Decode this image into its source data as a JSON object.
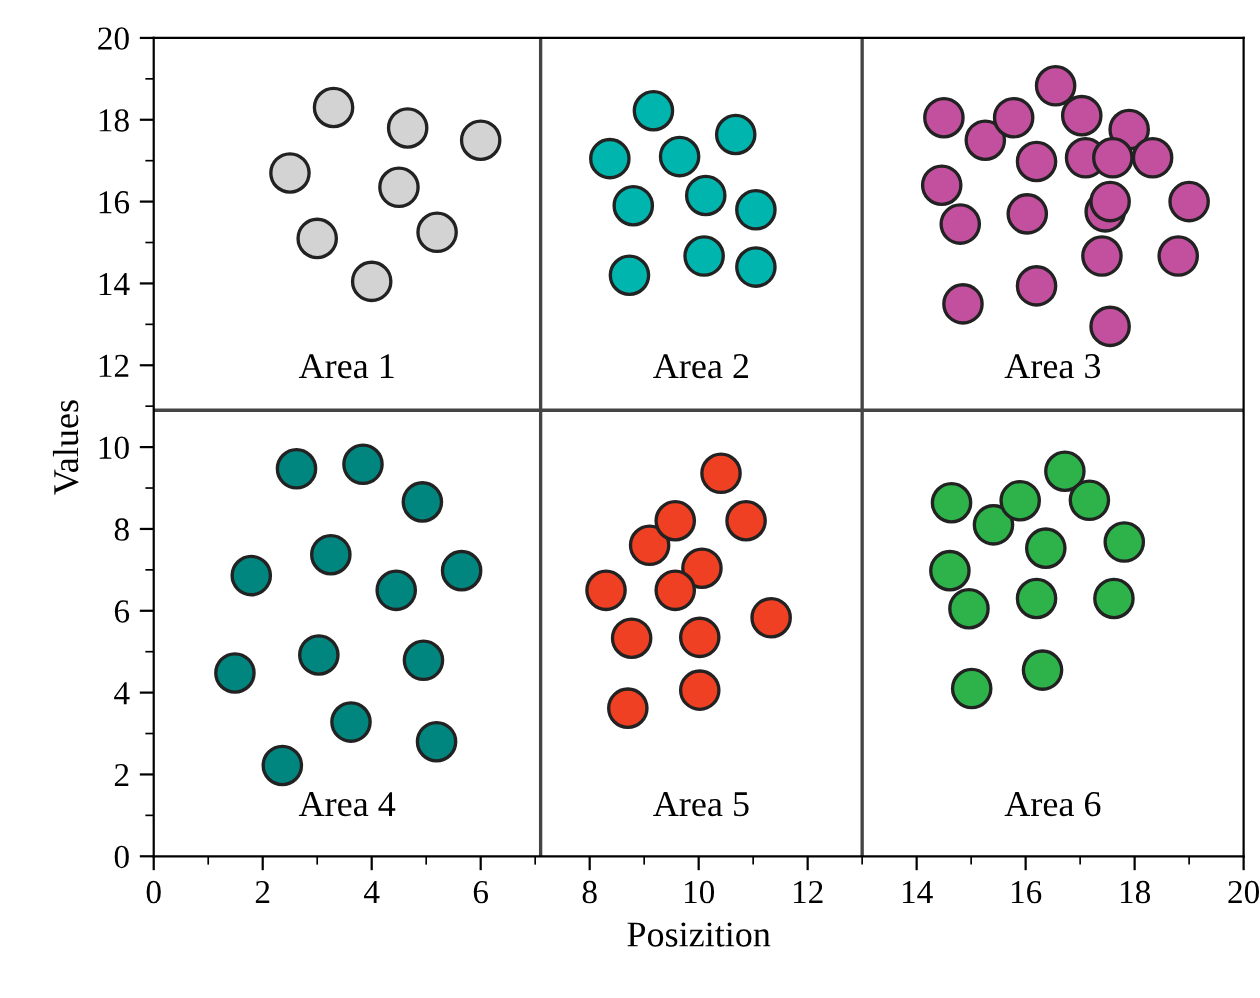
{
  "chart_data": {
    "type": "scatter",
    "xlabel": "Posizition",
    "ylabel": "Values",
    "xlim": [
      0,
      20
    ],
    "ylim": [
      0,
      20
    ],
    "xticks": [
      0,
      2,
      4,
      6,
      8,
      10,
      12,
      14,
      16,
      18,
      20
    ],
    "yticks": [
      0,
      2,
      4,
      6,
      8,
      10,
      12,
      14,
      16,
      18,
      20
    ],
    "grid": false,
    "legend": false,
    "marker": "circle",
    "series": [
      {
        "color": "#d3d3d3",
        "x": [
          2.5,
          3.3,
          4.66,
          6.0,
          4.5,
          3.0,
          5.2,
          4.0
        ],
        "values": [
          16.7,
          18.3,
          17.8,
          17.5,
          16.35,
          15.1,
          15.25,
          14.05
        ]
      },
      {
        "color": "#00b5ad",
        "x": [
          8.37,
          9.17,
          9.65,
          10.68,
          8.8,
          10.13,
          11.05,
          10.1,
          11.05,
          8.73
        ],
        "values": [
          17.05,
          18.22,
          17.1,
          17.64,
          15.9,
          16.15,
          15.8,
          14.67,
          14.4,
          14.2
        ]
      },
      {
        "color": "#c2509e",
        "x": [
          14.5,
          15.26,
          15.78,
          16.55,
          17.03,
          17.9,
          16.2,
          17.1,
          17.6,
          18.33,
          14.46,
          14.8,
          16.03,
          17.46,
          17.55,
          19.0,
          17.4,
          18.8,
          14.85,
          16.2,
          17.55
        ],
        "values": [
          18.05,
          17.5,
          18.05,
          18.83,
          18.1,
          17.76,
          16.98,
          17.07,
          17.07,
          17.07,
          16.4,
          15.45,
          15.7,
          15.75,
          16.0,
          16.0,
          14.67,
          14.67,
          13.5,
          13.94,
          12.95
        ]
      },
      {
        "color": "#00857f",
        "x": [
          2.62,
          3.84,
          4.93,
          3.25,
          1.79,
          4.45,
          5.65,
          1.49,
          3.03,
          4.95,
          3.62,
          5.19,
          2.36
        ],
        "values": [
          9.47,
          9.58,
          8.66,
          7.37,
          6.86,
          6.5,
          6.98,
          4.48,
          4.92,
          4.79,
          3.28,
          2.8,
          2.22
        ]
      },
      {
        "color": "#ef4023",
        "x": [
          8.3,
          9.1,
          9.57,
          10.41,
          10.87,
          10.06,
          9.57,
          8.77,
          10.02,
          11.33,
          8.7,
          10.02
        ],
        "values": [
          6.5,
          7.6,
          8.2,
          9.36,
          8.2,
          7.04,
          6.5,
          5.33,
          5.35,
          5.83,
          3.62,
          4.06
        ]
      },
      {
        "color": "#2db34a",
        "x": [
          14.64,
          15.41,
          15.9,
          16.72,
          17.17,
          16.37,
          17.81,
          14.61,
          14.96,
          16.2,
          17.62,
          16.31,
          15.01
        ],
        "values": [
          8.64,
          8.1,
          8.69,
          9.41,
          8.7,
          7.53,
          7.68,
          6.98,
          6.05,
          6.3,
          6.3,
          4.55,
          4.1
        ]
      }
    ],
    "ref_lines": [
      {
        "axis": "x",
        "value": 7.1,
        "color": "#444444"
      },
      {
        "axis": "x",
        "value": 13.0,
        "color": "#444444"
      },
      {
        "axis": "y",
        "value": 10.9,
        "color": "#444444"
      }
    ],
    "annotations": [
      "Area 1",
      "Area 2",
      "Area 3",
      "Area 4",
      "Area 5",
      "Area 6"
    ]
  }
}
